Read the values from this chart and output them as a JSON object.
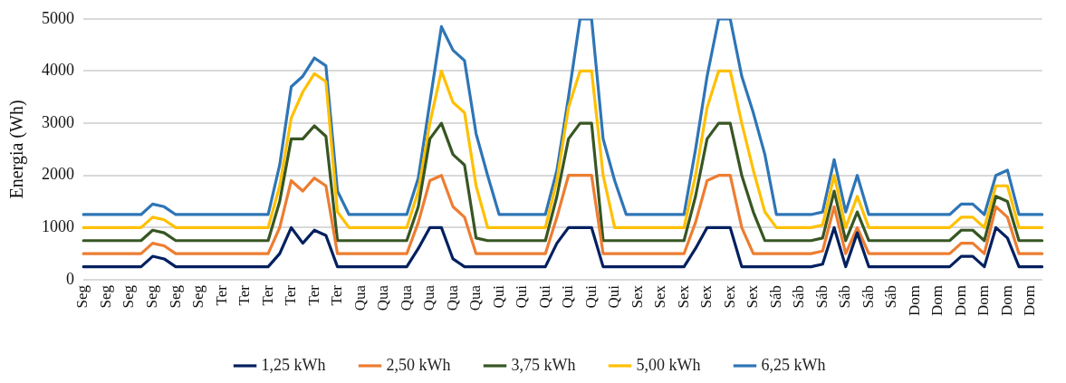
{
  "chart_data": {
    "type": "line",
    "ylabel": "Energia (Wh)",
    "ylim": [
      0,
      5000
    ],
    "yticks": [
      0,
      1000,
      2000,
      3000,
      4000,
      5000
    ],
    "grid": "y",
    "legend": "bottom",
    "marker": "none",
    "line_style": "solid",
    "categories": [
      "Seg",
      null,
      "Seg",
      null,
      "Seg",
      null,
      "Seg",
      null,
      "Seg",
      null,
      "Seg",
      null,
      "Ter",
      null,
      "Ter",
      null,
      "Ter",
      null,
      "Ter",
      null,
      "Ter",
      null,
      "Ter",
      null,
      "Qua",
      null,
      "Qua",
      null,
      "Qua",
      null,
      "Qua",
      null,
      "Qua",
      null,
      "Qua",
      null,
      "Qui",
      null,
      "Qui",
      null,
      "Qui",
      null,
      "Qui",
      null,
      "Qui",
      null,
      "Qui",
      null,
      "Sex",
      null,
      "Sex",
      null,
      "Sex",
      null,
      "Sex",
      null,
      "Sex",
      null,
      "Sex",
      null,
      "Sáb",
      null,
      "Sáb",
      null,
      "Sáb",
      null,
      "Sáb",
      null,
      "Sáb",
      null,
      "Sáb",
      null,
      "Dom",
      null,
      "Dom",
      null,
      "Dom",
      null,
      "Dom",
      null,
      "Dom",
      null,
      "Dom",
      null
    ],
    "series": [
      {
        "name": "1,25 kWh",
        "color": "#002060",
        "values": [
          250,
          250,
          250,
          250,
          250,
          250,
          450,
          400,
          250,
          250,
          250,
          250,
          250,
          250,
          250,
          250,
          250,
          500,
          1000,
          700,
          950,
          850,
          250,
          250,
          250,
          250,
          250,
          250,
          250,
          600,
          1000,
          1000,
          400,
          250,
          250,
          250,
          250,
          250,
          250,
          250,
          250,
          700,
          1000,
          1000,
          1000,
          250,
          250,
          250,
          250,
          250,
          250,
          250,
          250,
          600,
          1000,
          1000,
          1000,
          250,
          250,
          250,
          250,
          250,
          250,
          250,
          300,
          1000,
          250,
          900,
          250,
          250,
          250,
          250,
          250,
          250,
          250,
          250,
          450,
          450,
          250,
          1000,
          800,
          250,
          250,
          250
        ]
      },
      {
        "name": "2,50 kWh",
        "color": "#ed7d31",
        "values": [
          500,
          500,
          500,
          500,
          500,
          500,
          700,
          650,
          500,
          500,
          500,
          500,
          500,
          500,
          500,
          500,
          500,
          1000,
          1900,
          1700,
          1950,
          1800,
          500,
          500,
          500,
          500,
          500,
          500,
          500,
          1100,
          1900,
          2000,
          1400,
          1200,
          500,
          500,
          500,
          500,
          500,
          500,
          500,
          1200,
          2000,
          2000,
          2000,
          500,
          500,
          500,
          500,
          500,
          500,
          500,
          500,
          1100,
          1900,
          2000,
          2000,
          1000,
          500,
          500,
          500,
          500,
          500,
          500,
          550,
          1400,
          500,
          1000,
          500,
          500,
          500,
          500,
          500,
          500,
          500,
          500,
          700,
          700,
          500,
          1400,
          1200,
          500,
          500,
          500
        ]
      },
      {
        "name": "3,75 kWh",
        "color": "#375623",
        "values": [
          750,
          750,
          750,
          750,
          750,
          750,
          950,
          900,
          750,
          750,
          750,
          750,
          750,
          750,
          750,
          750,
          750,
          1500,
          2700,
          2700,
          2950,
          2750,
          750,
          750,
          750,
          750,
          750,
          750,
          750,
          1400,
          2700,
          3000,
          2400,
          2200,
          800,
          750,
          750,
          750,
          750,
          750,
          750,
          1600,
          2700,
          3000,
          3000,
          750,
          750,
          750,
          750,
          750,
          750,
          750,
          750,
          1600,
          2700,
          3000,
          3000,
          2000,
          1300,
          750,
          750,
          750,
          750,
          750,
          800,
          1700,
          750,
          1300,
          750,
          750,
          750,
          750,
          750,
          750,
          750,
          750,
          950,
          950,
          750,
          1600,
          1500,
          750,
          750,
          750
        ]
      },
      {
        "name": "5,00 kWh",
        "color": "#ffc000",
        "values": [
          1000,
          1000,
          1000,
          1000,
          1000,
          1000,
          1200,
          1150,
          1000,
          1000,
          1000,
          1000,
          1000,
          1000,
          1000,
          1000,
          1000,
          1800,
          3100,
          3600,
          3950,
          3800,
          1300,
          1000,
          1000,
          1000,
          1000,
          1000,
          1000,
          1700,
          3000,
          4000,
          3400,
          3200,
          1800,
          1000,
          1000,
          1000,
          1000,
          1000,
          1000,
          1900,
          3300,
          4000,
          4000,
          2000,
          1000,
          1000,
          1000,
          1000,
          1000,
          1000,
          1000,
          2000,
          3300,
          4000,
          4000,
          3000,
          2100,
          1300,
          1000,
          1000,
          1000,
          1000,
          1050,
          2000,
          1000,
          1600,
          1000,
          1000,
          1000,
          1000,
          1000,
          1000,
          1000,
          1000,
          1200,
          1200,
          1000,
          1800,
          1800,
          1000,
          1000,
          1000
        ]
      },
      {
        "name": "6,25 kWh",
        "color": "#2e75b6",
        "values": [
          1250,
          1250,
          1250,
          1250,
          1250,
          1250,
          1450,
          1400,
          1250,
          1250,
          1250,
          1250,
          1250,
          1250,
          1250,
          1250,
          1250,
          2200,
          3700,
          3900,
          4250,
          4100,
          1700,
          1250,
          1250,
          1250,
          1250,
          1250,
          1250,
          1950,
          3400,
          4850,
          4400,
          4200,
          2800,
          2000,
          1250,
          1250,
          1250,
          1250,
          1250,
          2100,
          3500,
          5000,
          5000,
          2700,
          1900,
          1250,
          1250,
          1250,
          1250,
          1250,
          1250,
          2500,
          3900,
          5000,
          5000,
          3900,
          3200,
          2400,
          1250,
          1250,
          1250,
          1250,
          1300,
          2300,
          1300,
          2000,
          1250,
          1250,
          1250,
          1250,
          1250,
          1250,
          1250,
          1250,
          1450,
          1450,
          1250,
          2000,
          2100,
          1250,
          1250,
          1250
        ]
      }
    ]
  }
}
